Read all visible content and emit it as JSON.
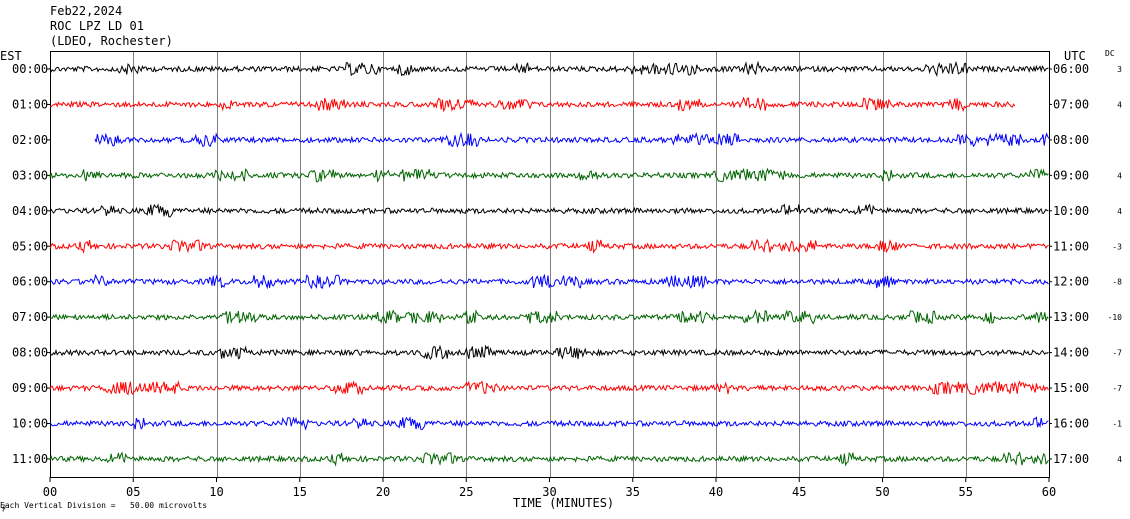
{
  "header": {
    "date": "Feb22,2024",
    "station": "ROC LPZ LD 01",
    "network": "(LDEO, Rochester)"
  },
  "left_label": "EST",
  "right_label": "UTC",
  "dc_label": "DC",
  "footer": {
    "note": "Each Vertical Division =   50.00 microvolts",
    "xlabel": "TIME (MINUTES)"
  },
  "colors": [
    "#000000",
    "#ff0000",
    "#0000ff",
    "#006400"
  ],
  "chart_data": {
    "type": "line",
    "title": "Feb22,2024 ROC LPZ LD 01 (LDEO, Rochester)",
    "xlabel": "TIME (MINUTES)",
    "xlim": [
      0,
      60
    ],
    "x_ticks": [
      "00",
      "05",
      "10",
      "15",
      "20",
      "25",
      "30",
      "35",
      "40",
      "45",
      "50",
      "55",
      "60"
    ],
    "grid": true,
    "series": [
      {
        "est": "00:00",
        "utc": "06:00",
        "dc": "3",
        "color": "#000000",
        "start": 0,
        "end": 60
      },
      {
        "est": "01:00",
        "utc": "07:00",
        "dc": "4",
        "color": "#ff0000",
        "start": 0,
        "end": 58
      },
      {
        "est": "02:00",
        "utc": "08:00",
        "dc": "",
        "color": "#0000ff",
        "start": 2.7,
        "end": 60
      },
      {
        "est": "03:00",
        "utc": "09:00",
        "dc": "4",
        "color": "#006400",
        "start": 0,
        "end": 60
      },
      {
        "est": "04:00",
        "utc": "10:00",
        "dc": "4",
        "color": "#000000",
        "start": 0,
        "end": 60
      },
      {
        "est": "05:00",
        "utc": "11:00",
        "dc": "-3",
        "color": "#ff0000",
        "start": 0,
        "end": 60
      },
      {
        "est": "06:00",
        "utc": "12:00",
        "dc": "-8",
        "color": "#0000ff",
        "start": 0,
        "end": 60
      },
      {
        "est": "07:00",
        "utc": "13:00",
        "dc": "-10",
        "color": "#006400",
        "start": 0,
        "end": 60
      },
      {
        "est": "08:00",
        "utc": "14:00",
        "dc": "-7",
        "color": "#000000",
        "start": 0,
        "end": 60
      },
      {
        "est": "09:00",
        "utc": "15:00",
        "dc": "-7",
        "color": "#ff0000",
        "start": 0,
        "end": 60
      },
      {
        "est": "10:00",
        "utc": "16:00",
        "dc": "-1",
        "color": "#0000ff",
        "start": 0,
        "end": 60
      },
      {
        "est": "11:00",
        "utc": "17:00",
        "dc": "4",
        "color": "#006400",
        "start": 0,
        "end": 60
      }
    ]
  }
}
